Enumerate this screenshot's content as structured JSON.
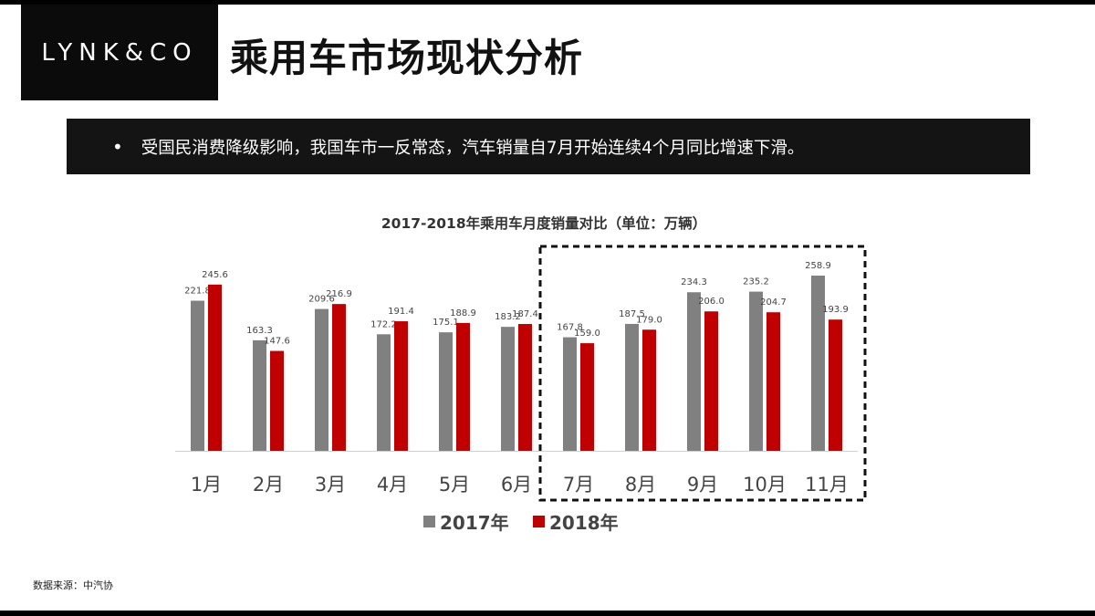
{
  "logo": {
    "text": "LYNK&CO"
  },
  "header": {
    "title": "乘用车市场现状分析"
  },
  "banner": {
    "bullet": "•",
    "text": "受国民消费降级影响，我国车市一反常态，汽车销量自7月开始连续4个月同比增速下滑。"
  },
  "footer": {
    "source": "数据来源：中汽协"
  },
  "colors": {
    "s2017": "#808080",
    "s2018": "#c00000"
  },
  "chart_data": {
    "type": "bar",
    "title": "2017-2018年乘用车月度销量对比（单位：万辆）",
    "categories": [
      "1月",
      "2月",
      "3月",
      "4月",
      "5月",
      "6月",
      "7月",
      "8月",
      "9月",
      "10月",
      "11月"
    ],
    "series": [
      {
        "name": "2017年",
        "values": [
          221.8,
          163.3,
          209.6,
          172.2,
          175.1,
          183.2,
          167.8,
          187.5,
          234.3,
          235.2,
          258.9
        ]
      },
      {
        "name": "2018年",
        "values": [
          245.6,
          147.6,
          216.9,
          191.4,
          188.9,
          187.4,
          159.0,
          179.0,
          206.0,
          204.7,
          193.9
        ]
      }
    ],
    "ylim": [
      0,
      260
    ],
    "grid": false,
    "legend": "bottom",
    "highlight": {
      "from": "7月",
      "to": "11月",
      "style": "dashed-box"
    }
  }
}
